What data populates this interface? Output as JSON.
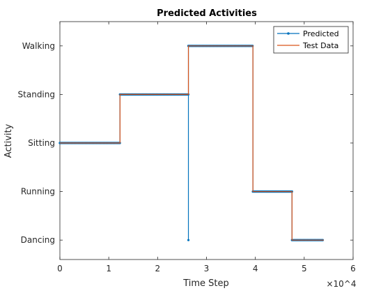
{
  "chart_data": {
    "type": "line",
    "title": "Predicted Activities",
    "xlabel": "Time Step",
    "ylabel": "Activity",
    "x_exponent_label": "×10^4",
    "xlim": [
      0,
      60000
    ],
    "xticks": [
      0,
      10000,
      20000,
      30000,
      40000,
      50000,
      60000
    ],
    "xtick_labels": [
      "0",
      "1",
      "2",
      "3",
      "4",
      "5",
      "6"
    ],
    "ylim": [
      0.6,
      5.5
    ],
    "yticks": [
      1,
      2,
      3,
      4,
      5
    ],
    "ytick_labels": [
      "Dancing",
      "Running",
      "Sitting",
      "Standing",
      "Walking"
    ],
    "grid": false,
    "legend_position": "top-right",
    "series": [
      {
        "name": "Predicted",
        "color": "#0072BD",
        "marker": "dot",
        "segments": [
          {
            "x0": 0,
            "x1": 12300,
            "y": 3
          },
          {
            "x0": 12300,
            "x1": 26300,
            "y": 4
          },
          {
            "x0": 26300,
            "x1": 26300,
            "y": 1
          },
          {
            "x0": 26300,
            "x1": 39500,
            "y": 5
          },
          {
            "x0": 39500,
            "x1": 47500,
            "y": 2
          },
          {
            "x0": 47500,
            "x1": 54000,
            "y": 1
          }
        ]
      },
      {
        "name": "Test Data",
        "color": "#D95319",
        "marker": "none",
        "segments": [
          {
            "x0": 0,
            "x1": 12300,
            "y": 3
          },
          {
            "x0": 12300,
            "x1": 26300,
            "y": 4
          },
          {
            "x0": 26300,
            "x1": 39500,
            "y": 5
          },
          {
            "x0": 39500,
            "x1": 47500,
            "y": 2
          },
          {
            "x0": 47500,
            "x1": 54000,
            "y": 1
          }
        ]
      }
    ]
  }
}
